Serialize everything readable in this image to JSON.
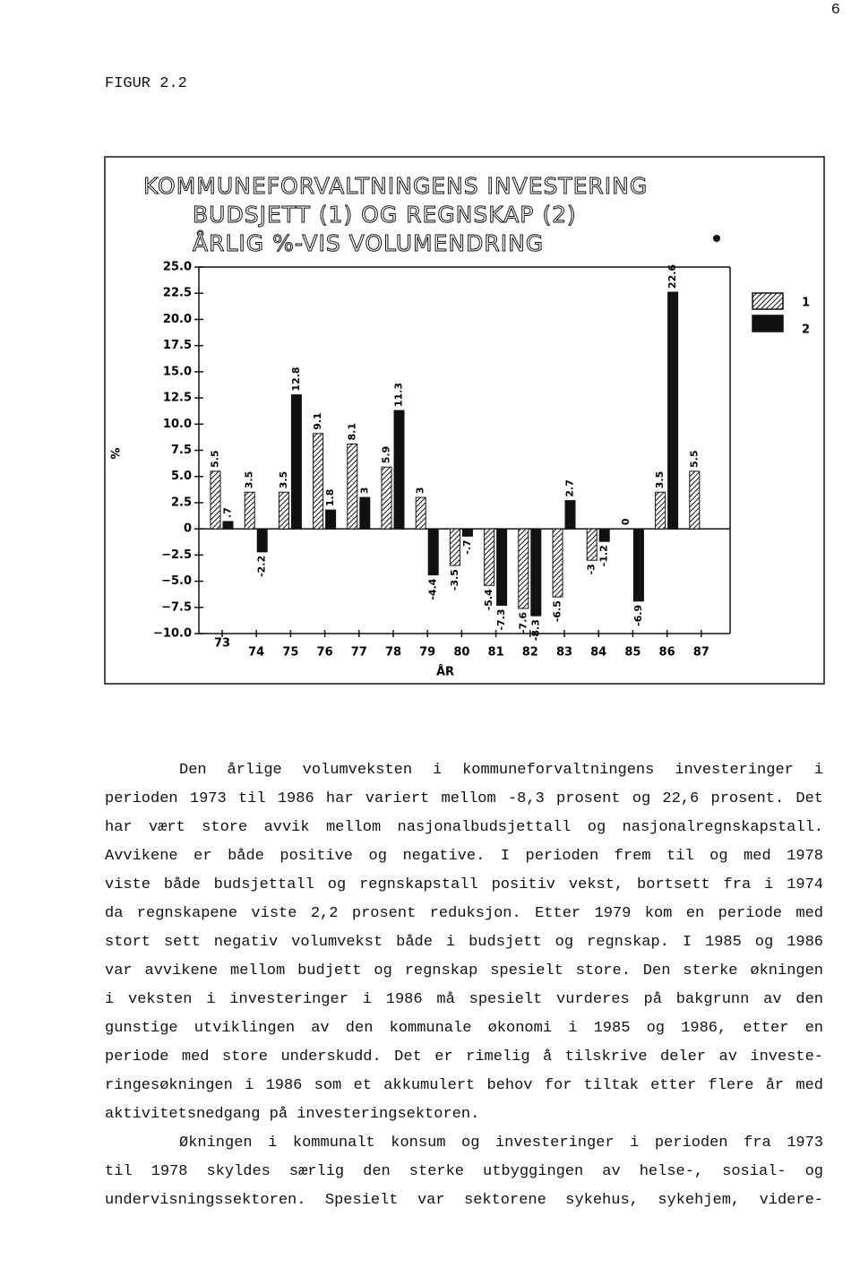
{
  "page_number": "6",
  "figure_label": "FIGUR 2.2",
  "chart_data": {
    "type": "bar",
    "title": [
      "KOMMUNEFORVALTNINGENS INVESTERING",
      "BUDSJETT (1) OG REGNSKAP (2)",
      "ÅRLIG %-VIS VOLUMENDRING"
    ],
    "x_label": "ÅR",
    "y_label": "%",
    "categories": [
      "73",
      "74",
      "75",
      "76",
      "77",
      "78",
      "79",
      "80",
      "81",
      "82",
      "83",
      "84",
      "85",
      "86",
      "87"
    ],
    "series": [
      {
        "name": "1",
        "color": "hatched",
        "values": [
          5.5,
          3.5,
          3.5,
          9.1,
          8.1,
          5.9,
          3,
          -3.5,
          -5.4,
          -7.6,
          -6.5,
          -3,
          0,
          3.5,
          5.5
        ],
        "value_labels": [
          "5.5",
          "3.5",
          "3.5",
          "9.1",
          "8.1",
          "5.9",
          "3",
          "-3.5",
          "-5.4",
          "-7.6",
          "-6.5",
          "-3",
          "0",
          "3.5",
          "5.5"
        ]
      },
      {
        "name": "2",
        "color": "#111111",
        "values": [
          0.7,
          -2.2,
          12.8,
          1.8,
          3,
          11.3,
          -4.4,
          -0.7,
          -7.3,
          -8.3,
          2.7,
          -1.2,
          -6.9,
          22.6,
          null
        ],
        "value_labels": [
          ".7",
          "-2.2",
          "12.8",
          "1.8",
          "3",
          "11.3",
          "-4.4",
          "-.7",
          "-7.3",
          "-8.3",
          "2.7",
          "-1.2",
          "-6.9",
          "22.6",
          null
        ]
      }
    ],
    "ylim": [
      -10,
      25
    ],
    "yticks": [
      {
        "value": 25,
        "label": "25.0"
      },
      {
        "value": 22.5,
        "label": "22.5"
      },
      {
        "value": 20,
        "label": "20.0"
      },
      {
        "value": 17.5,
        "label": "17.5"
      },
      {
        "value": 15,
        "label": "15.0"
      },
      {
        "value": 12.5,
        "label": "12.5"
      },
      {
        "value": 10,
        "label": "10.0"
      },
      7.5,
      {
        "value": 5,
        "label": "5.0"
      },
      2.5,
      0,
      {
        "value": -2.5,
        "label": "−2.5"
      },
      {
        "value": -5,
        "label": "−5.0"
      },
      {
        "value": -7.5,
        "label": "−7.5"
      },
      {
        "value": -10,
        "label": "−10.0"
      }
    ],
    "legend": "right"
  },
  "text": {
    "paragraphs": [
      [
        "Den årlige volumveksten i kommuneforvaltningens investeringer i",
        "perioden 1973 til 1986 har variert mellom -8,3 prosent og 22,6 prosent. Det",
        "har vært store avvik mellom nasjonalbudsjettall og nasjonalregnskapstall.",
        "Avvikene er både positive og negative. I perioden frem til og med 1978",
        "viste både budsjettall og regnskapstall positiv vekst, bortsett fra i 1974",
        "da regnskapene viste 2,2 prosent reduksjon. Etter 1979 kom en periode med",
        "stort sett negativ volumvekst både i budsjett og regnskap. I 1985 og 1986",
        "var avvikene mellom budjett og regnskap spesielt store. Den sterke økningen",
        "i veksten i investeringer i 1986 må spesielt vurderes på bakgrunn av den",
        "gunstige utviklingen av den kommunale økonomi i 1985 og 1986, etter en",
        "periode med store underskudd. Det er rimelig å tilskrive deler av investe-",
        "ringesøkningen i 1986 som et akkumulert behov for tiltak etter flere år med",
        "aktivitetsnedgang på investeringsektoren."
      ],
      [
        "Økningen i kommunalt konsum og investeringer i perioden fra 1973",
        "til 1978 skyldes særlig den sterke utbyggingen av helse-, sosial- og",
        "undervisningssektoren. Spesielt var sektorene sykehus, sykehjem, videre-"
      ]
    ]
  }
}
